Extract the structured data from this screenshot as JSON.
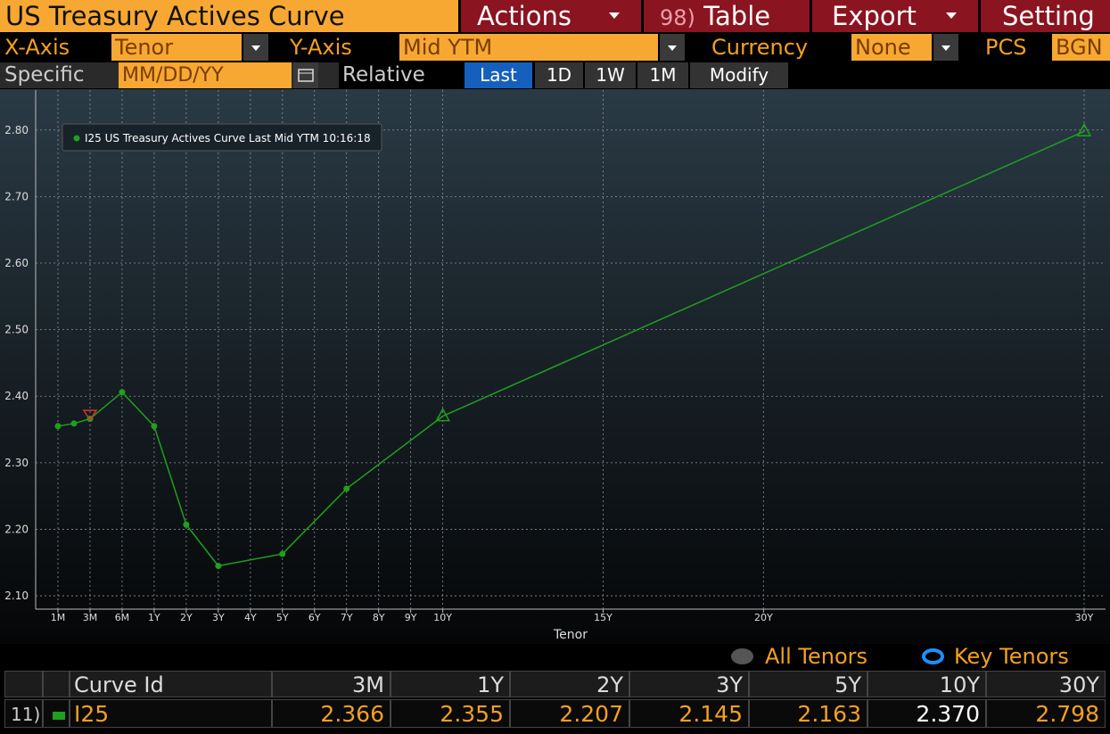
{
  "toolbar": {
    "title": "US Treasury Actives Curve",
    "actions": "Actions",
    "table_num": "98)",
    "table": "Table",
    "export": "Export",
    "settings": "Setting"
  },
  "controls": {
    "x_axis_label": "X-Axis",
    "x_axis_value": "Tenor",
    "y_axis_label": "Y-Axis",
    "y_axis_value": "Mid YTM",
    "currency_label": "Currency",
    "currency_value": "None",
    "pcs_label": "PCS",
    "pcs_value": "BGN"
  },
  "date_row": {
    "specific": "Specific",
    "date_placeholder": "MM/DD/YY",
    "relative": "Relative",
    "buttons": [
      "Last",
      "1D",
      "1W",
      "1M",
      "Modify"
    ]
  },
  "chart_data": {
    "type": "line",
    "x_label": "Tenor",
    "x": [
      0.0833,
      0.1667,
      0.25,
      0.5,
      1,
      2,
      3,
      5,
      7,
      10,
      30
    ],
    "series": [
      {
        "name": "I25 US Treasury Actives Curve Last Mid YTM 10:16:18",
        "color": "#1fa01f",
        "values": [
          2.355,
          2.359,
          2.366,
          2.406,
          2.355,
          2.207,
          2.145,
          2.163,
          2.261,
          2.37,
          2.798
        ],
        "markers": [
          "circle",
          "circle",
          "circle",
          "circle",
          "circle",
          "circle",
          "circle",
          "circle",
          "circle",
          "triangle-up",
          "triangle-up"
        ]
      }
    ],
    "indicators": [
      {
        "x": 0.25,
        "value": 2.372,
        "color": "#e03030",
        "marker": "triangle-down"
      }
    ],
    "ylim": [
      2.08,
      2.86
    ],
    "yticks": [
      {
        "value": 2.1,
        "label": "2.10"
      },
      {
        "value": 2.2,
        "label": "2.20"
      },
      {
        "value": 2.3,
        "label": "2.30"
      },
      {
        "value": 2.4,
        "label": "2.40"
      },
      {
        "value": 2.5,
        "label": "2.50"
      },
      {
        "value": 2.6,
        "label": "2.60"
      },
      {
        "value": 2.7,
        "label": "2.70"
      },
      {
        "value": 2.8,
        "label": "2.80"
      }
    ],
    "xticks": [
      {
        "value": 0.0833,
        "label": "1M"
      },
      {
        "value": 0.25,
        "label": "3M"
      },
      {
        "value": 0.5,
        "label": "6M"
      },
      {
        "value": 1,
        "label": "1Y"
      },
      {
        "value": 2,
        "label": "2Y"
      },
      {
        "value": 3,
        "label": "3Y"
      },
      {
        "value": 4,
        "label": "4Y"
      },
      {
        "value": 5,
        "label": "5Y"
      },
      {
        "value": 6,
        "label": "6Y"
      },
      {
        "value": 7,
        "label": "7Y"
      },
      {
        "value": 8,
        "label": "8Y"
      },
      {
        "value": 9,
        "label": "9Y"
      },
      {
        "value": 10,
        "label": "10Y"
      },
      {
        "value": 15,
        "label": "15Y"
      },
      {
        "value": 20,
        "label": "20Y"
      },
      {
        "value": 30,
        "label": "30Y"
      }
    ],
    "grid": true,
    "legend": "upper left"
  },
  "tenor_toggle": {
    "all": "All Tenors",
    "key": "Key Tenors"
  },
  "table": {
    "headers": [
      "Curve Id",
      "3M",
      "1Y",
      "2Y",
      "3Y",
      "5Y",
      "10Y",
      "30Y"
    ],
    "rows": [
      {
        "num": "11)",
        "cells": [
          "I25",
          "2.366",
          "2.355",
          "2.207",
          "2.145",
          "2.163",
          "2.370",
          "2.798"
        ]
      }
    ]
  }
}
